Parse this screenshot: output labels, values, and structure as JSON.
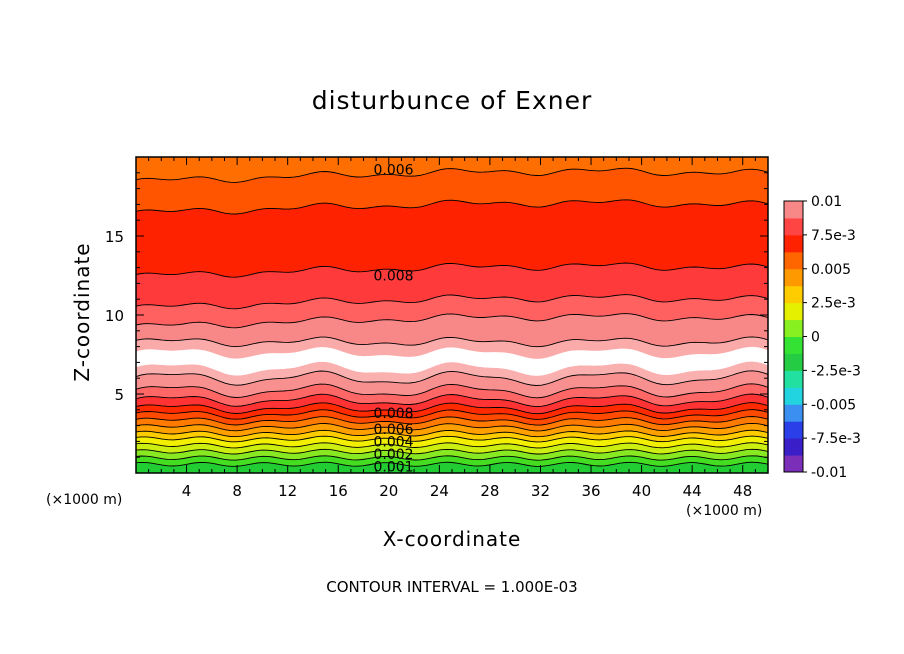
{
  "chart_data": {
    "type": "heatmap",
    "title": "disturbunce of Exner",
    "xlabel": "X-coordinate",
    "ylabel": "Z-coordinate",
    "x_unit": "(×1000 m)",
    "y_unit": "(×1000 m)",
    "xlim": [
      0,
      50
    ],
    "ylim": [
      0,
      20
    ],
    "x_ticks": [
      4,
      8,
      12,
      16,
      20,
      24,
      28,
      32,
      36,
      40,
      44,
      48
    ],
    "y_ticks": [
      5,
      10,
      15
    ],
    "contour_interval_text": "CONTOUR INTERVAL = 1.000E-03",
    "contour_labels": [
      {
        "text": "0.006",
        "x": 18,
        "z": 19.2
      },
      {
        "text": "0.008",
        "x": 18,
        "z": 12.5
      },
      {
        "text": "0.008",
        "x": 18,
        "z": 3.8
      },
      {
        "text": "0.006",
        "x": 18,
        "z": 2.8
      },
      {
        "text": "0.004",
        "x": 18,
        "z": 2.0
      },
      {
        "text": "0.002",
        "x": 18,
        "z": 1.2
      },
      {
        "text": "0.001",
        "x": 18,
        "z": 0.4
      }
    ],
    "colorbar": {
      "labels": [
        "0.01",
        "7.5e-3",
        "0.005",
        "2.5e-3",
        "0",
        "-2.5e-3",
        "-0.005",
        "-7.5e-3",
        "-0.01"
      ],
      "min": -0.01,
      "max": 0.01,
      "colors": [
        "#7b2fb8",
        "#3a1fc8",
        "#2a3fe8",
        "#3a8ff0",
        "#22d4e0",
        "#22e0a0",
        "#24cc44",
        "#33e233",
        "#88f020",
        "#e4f000",
        "#ffcc00",
        "#ff9900",
        "#ff6600",
        "#ff2200",
        "#ff4444",
        "#f88888"
      ]
    },
    "bands": [
      {
        "value": "0.0005",
        "z_top": 0.55,
        "color": "#22cc33"
      },
      {
        "value": "0.001",
        "z_top": 0.95,
        "color": "#44dd22"
      },
      {
        "value": "0.0015",
        "z_top": 1.35,
        "color": "#88e822"
      },
      {
        "value": "0.002",
        "z_top": 1.75,
        "color": "#ccee11"
      },
      {
        "value": "0.0025",
        "z_top": 2.15,
        "color": "#f2f000"
      },
      {
        "value": "0.003",
        "z_top": 2.5,
        "color": "#ffcc00"
      },
      {
        "value": "0.004",
        "z_top": 2.9,
        "color": "#ffa000"
      },
      {
        "value": "0.005",
        "z_top": 3.3,
        "color": "#ff7a00"
      },
      {
        "value": "0.006",
        "z_top": 3.7,
        "color": "#ff4a00"
      },
      {
        "value": "0.007",
        "z_top": 4.1,
        "color": "#ff2a00"
      },
      {
        "value": "0.008",
        "z_top": 4.6,
        "color": "#ff3333"
      },
      {
        "value": "0.0085",
        "z_top": 5.2,
        "color": "#ff6666"
      },
      {
        "value": "0.009",
        "z_top": 6.0,
        "color": "#f89090"
      },
      {
        "value": "0.0095",
        "z_top": 6.6,
        "color": "#fbb0b0"
      },
      {
        "value": "0.01",
        "z_top": 7.6,
        "color": "#ffffff"
      },
      {
        "value": "0.0095",
        "z_top": 8.3,
        "color": "#fbaaaa"
      },
      {
        "value": "0.009",
        "z_top": 9.5,
        "color": "#f88888"
      },
      {
        "value": "0.0085",
        "z_top": 10.7,
        "color": "#ff6060"
      },
      {
        "value": "0.008",
        "z_top": 12.7,
        "color": "#ff3a3a"
      },
      {
        "value": "0.007",
        "z_top": 16.7,
        "color": "#ff2200"
      },
      {
        "value": "0.006",
        "z_top": 18.7,
        "color": "#ff5500"
      },
      {
        "value": "0.005",
        "z_top": 20.0,
        "color": "#ff6e00"
      }
    ]
  }
}
